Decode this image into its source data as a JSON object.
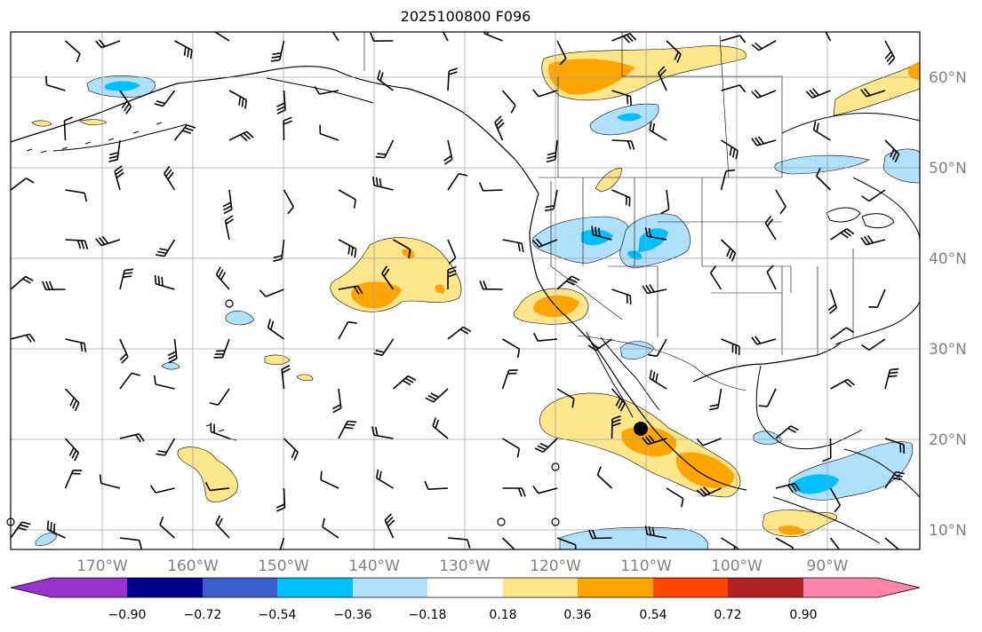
{
  "title": "2025100800 F096",
  "map": {
    "lon_labels": [
      "170°W",
      "160°W",
      "150°W",
      "140°W",
      "130°W",
      "120°W",
      "110°W",
      "100°W",
      "90°W"
    ],
    "lat_labels": [
      "60°N",
      "50°N",
      "40°N",
      "30°N",
      "20°N",
      "10°N"
    ],
    "gridlines": true,
    "label_color": "#808080",
    "storm_center_marker": {
      "lon": -110.5,
      "lat": 21.2
    }
  },
  "colorbar": {
    "tick_labels": [
      "−0.90",
      "−0.72",
      "−0.54",
      "−0.36",
      "−0.18",
      "0.18",
      "0.36",
      "0.54",
      "0.72",
      "0.90"
    ],
    "colors": [
      "#9932cc",
      "#00008b",
      "#3a5fcd",
      "#00bfff",
      "#b0e0fa",
      "#ffffff",
      "#fce68c",
      "#ffa500",
      "#ff4500",
      "#b22222",
      "#ff85ab"
    ],
    "extend": "both"
  },
  "legend_colors": {
    "neg_light": "#b0e0fa",
    "neg_mid": "#00bfff",
    "pos_light": "#fce68c",
    "pos_mid": "#ffa500"
  }
}
